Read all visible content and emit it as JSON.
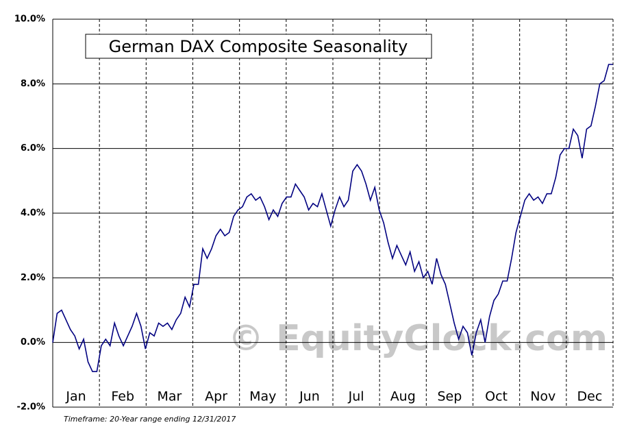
{
  "chart_data": {
    "type": "line",
    "title": "German DAX Composite Seasonality",
    "footnote": "Timeframe: 20-Year range ending 12/31/2017",
    "watermark": "© EquityClock.com",
    "months": [
      "Jan",
      "Feb",
      "Mar",
      "Apr",
      "May",
      "Jun",
      "Jul",
      "Aug",
      "Sep",
      "Oct",
      "Nov",
      "Dec"
    ],
    "color": "#000080",
    "values": [
      0,
      0.9,
      1.0,
      0.7,
      0.4,
      0.2,
      -0.2,
      0.1,
      -0.6,
      -0.9,
      -0.9,
      -0.1,
      0.1,
      -0.1,
      0.6,
      0.2,
      -0.1,
      0.2,
      0.5,
      0.9,
      0.5,
      -0.2,
      0.3,
      0.2,
      0.6,
      0.5,
      0.6,
      0.4,
      0.7,
      0.9,
      1.4,
      1.1,
      1.8,
      1.8,
      2.9,
      2.6,
      2.9,
      3.3,
      3.5,
      3.3,
      3.4,
      3.9,
      4.1,
      4.2,
      4.5,
      4.6,
      4.4,
      4.5,
      4.2,
      3.8,
      4.1,
      3.9,
      4.3,
      4.5,
      4.5,
      4.9,
      4.7,
      4.5,
      4.1,
      4.3,
      4.2,
      4.6,
      4.1,
      3.6,
      4.1,
      4.5,
      4.2,
      4.4,
      5.3,
      5.5,
      5.3,
      4.9,
      4.4,
      4.8,
      4.1,
      3.7,
      3.1,
      2.6,
      3.0,
      2.7,
      2.4,
      2.8,
      2.2,
      2.5,
      2.0,
      2.2,
      1.8,
      2.6,
      2.1,
      1.8,
      1.2,
      0.6,
      0.1,
      0.5,
      0.3,
      -0.4,
      0.3,
      0.7,
      0.0,
      0.8,
      1.3,
      1.5,
      1.9,
      1.9,
      2.6,
      3.4,
      3.9,
      4.4,
      4.6,
      4.4,
      4.5,
      4.3,
      4.6,
      4.6,
      5.1,
      5.8,
      6.0,
      6.0,
      6.6,
      6.4,
      5.7,
      6.6,
      6.7,
      7.3,
      8.0,
      8.1,
      8.6,
      8.6
    ],
    "ylim": [
      -2,
      10
    ],
    "yticks": [
      {
        "value": -2,
        "label": "-2.0%"
      },
      {
        "value": 0,
        "label": "0.0%"
      },
      {
        "value": 2,
        "label": "2.0%"
      },
      {
        "value": 4,
        "label": "4.0%"
      },
      {
        "value": 6,
        "label": "6.0%"
      },
      {
        "value": 8,
        "label": "8.0%"
      },
      {
        "value": 10,
        "label": "10.0%"
      }
    ],
    "grid": true
  }
}
